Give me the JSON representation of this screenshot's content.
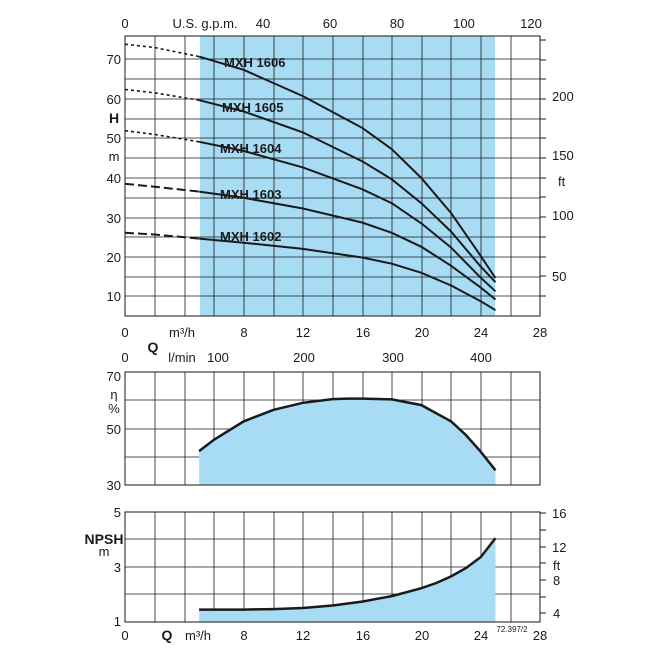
{
  "chart_data": [
    {
      "type": "line",
      "title": "",
      "x_axis_bottom": {
        "label": "m³/h",
        "ticks": [
          "0",
          "8",
          "12",
          "16",
          "20",
          "24",
          "28"
        ],
        "range": [
          0,
          28
        ]
      },
      "x_axis_top": {
        "label": "U.S. g.p.m.",
        "ticks": [
          "0",
          "20",
          "40",
          "60",
          "80",
          "100",
          "120"
        ],
        "range": [
          0,
          123.3
        ]
      },
      "y_axis_left": {
        "label_top": "H",
        "label_bottom": "m",
        "ticks": [
          "10",
          "20",
          "30",
          "40",
          "50",
          "60",
          "70"
        ],
        "range": [
          5,
          73
        ]
      },
      "y_axis_right": {
        "label": "ft",
        "ticks": [
          "50",
          "100",
          "150",
          "200"
        ],
        "range": [
          16.4,
          239.5
        ]
      },
      "shaded_range_x": [
        5,
        25
      ],
      "fill_color": "#a8dcf4",
      "line_color": "#1a1a1a",
      "grid": true,
      "series": [
        {
          "name": "MXH 1606",
          "x": [
            0,
            2,
            5,
            8,
            12,
            16,
            18,
            20,
            22,
            24,
            25
          ],
          "y": [
            71,
            70.2,
            68,
            64.8,
            58.4,
            50.7,
            45.5,
            38.5,
            30,
            19.6,
            14.2
          ]
        },
        {
          "name": "MXH 1605",
          "x": [
            0,
            2,
            5,
            8,
            12,
            16,
            18,
            20,
            22,
            24,
            25
          ],
          "y": [
            60,
            59.2,
            57.4,
            54.7,
            49.6,
            42.6,
            38.2,
            32.4,
            25.5,
            17,
            13.2
          ]
        },
        {
          "name": "MXH 1604",
          "x": [
            0,
            2,
            5,
            8,
            12,
            16,
            18,
            20,
            22,
            24,
            25
          ],
          "y": [
            50,
            49.1,
            47.3,
            45.1,
            41.1,
            35.8,
            32.4,
            27.5,
            21.6,
            14.3,
            11
          ]
        },
        {
          "name": "MXH 1603",
          "x": [
            0,
            2,
            5,
            8,
            12,
            16,
            18,
            20,
            22,
            24,
            25
          ],
          "y": [
            37.1,
            36.4,
            35.2,
            33.7,
            31.1,
            27.7,
            25.2,
            21.8,
            17.2,
            11.9,
            9
          ]
        },
        {
          "name": "MXH 1602",
          "x": [
            0,
            2,
            5,
            8,
            12,
            16,
            18,
            20,
            22,
            24,
            25
          ],
          "y": [
            25.2,
            24.8,
            23.8,
            22.8,
            21.3,
            19.2,
            17.7,
            15.5,
            12.4,
            8.6,
            6.4
          ]
        }
      ]
    },
    {
      "type": "area",
      "x_axis_top": {
        "label": "l/min",
        "ticks": [
          "0",
          "100",
          "200",
          "300",
          "400"
        ],
        "range": [
          0,
          466.7
        ]
      },
      "x_axis_bottom_label": "Q",
      "y_axis_left": {
        "label_top": "η",
        "label_bottom": "%",
        "ticks": [
          "30",
          "50",
          "70"
        ],
        "range": [
          30,
          70
        ]
      },
      "grid": true,
      "series": [
        {
          "name": "",
          "x": [
            5,
            6,
            8,
            10,
            12,
            14,
            15,
            16,
            18,
            20,
            22,
            23,
            24,
            25
          ],
          "y": [
            42,
            46,
            52.5,
            56.6,
            59.1,
            60.4,
            60.6,
            60.6,
            60.3,
            58.3,
            52.5,
            47.7,
            41.8,
            35.2
          ]
        }
      ]
    },
    {
      "type": "area",
      "title": "",
      "x_axis_bottom": {
        "label": "m³/h",
        "ticks": [
          "0",
          "8",
          "12",
          "16",
          "20",
          "24",
          "28"
        ],
        "range": [
          0,
          28
        ]
      },
      "x_axis_bottom_label": "Q",
      "y_axis_left": {
        "label_top": "NPSH",
        "label_bottom": "m",
        "ticks": [
          "1",
          "3",
          "5"
        ],
        "range": [
          1,
          5
        ]
      },
      "y_axis_right": {
        "label": "ft",
        "ticks": [
          "4",
          "8",
          "12",
          "16"
        ],
        "range": [
          3.28,
          16.4
        ]
      },
      "grid": true,
      "series": [
        {
          "name": "",
          "x": [
            5,
            8,
            10,
            12,
            14,
            16,
            18,
            20,
            21,
            22,
            23,
            24,
            25
          ],
          "y": [
            1.45,
            1.45,
            1.47,
            1.51,
            1.6,
            1.74,
            1.94,
            2.23,
            2.42,
            2.66,
            2.96,
            3.36,
            4.05
          ]
        }
      ]
    }
  ],
  "figure_code": "72.397/2"
}
